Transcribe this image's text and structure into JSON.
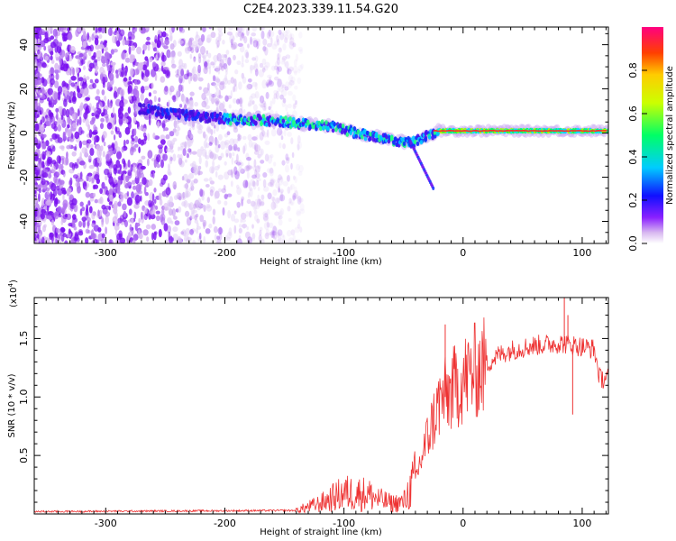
{
  "title": "C2E4.2023.339.11.54.G20",
  "chart_data": [
    {
      "type": "heatmap",
      "xlabel": "Height of straight line (km)",
      "ylabel": "Frequency (Hz)",
      "xlim": [
        -360,
        122
      ],
      "ylim": [
        -50,
        48
      ],
      "x_ticks": [
        -300,
        -200,
        -100,
        0,
        100
      ],
      "x_tick_labels": [
        "-300",
        "-200",
        "-100",
        "0",
        "100"
      ],
      "y_ticks": [
        -40,
        -20,
        0,
        20,
        40
      ],
      "y_tick_labels": [
        "-40",
        "-20",
        "0",
        "20",
        "40"
      ],
      "colorbar": {
        "label": "Normalized spectral amplitude",
        "range": [
          0,
          1
        ],
        "ticks": [
          0.0,
          0.2,
          0.4,
          0.6,
          0.8
        ],
        "tick_labels": [
          "0.0",
          "0.2",
          "0.4",
          "0.6",
          "0.8"
        ]
      },
      "signal_track": {
        "x": [
          -270,
          -250,
          -230,
          -210,
          -190,
          -170,
          -150,
          -130,
          -110,
          -90,
          -70,
          -50,
          -40,
          -30,
          -20,
          0,
          20,
          40,
          60,
          80,
          100,
          120
        ],
        "y": [
          11,
          9,
          8,
          7,
          6,
          6,
          5,
          4,
          3,
          0,
          -2,
          -4,
          -4,
          -1,
          1,
          1,
          1,
          1,
          1,
          1,
          1,
          1
        ]
      },
      "spur": {
        "x": [
          -45,
          -25
        ],
        "y": [
          -3,
          -25
        ]
      }
    },
    {
      "type": "line",
      "xlabel": "Height of straight line (km)",
      "ylabel": "SNR (10 * v/v)",
      "scale_label": "(x10",
      "scale_exp": "4",
      "scale_suffix": ")",
      "xlim": [
        -360,
        122
      ],
      "ylim": [
        0,
        18500
      ],
      "x_ticks": [
        -300,
        -200,
        -100,
        0,
        100
      ],
      "x_tick_labels": [
        "-300",
        "-200",
        "-100",
        "0",
        "100"
      ],
      "y_ticks": [
        5000,
        10000,
        15000
      ],
      "y_tick_labels": [
        "0.5",
        "1.0",
        "1.5"
      ],
      "color": "#ee3333",
      "envelope": {
        "x": [
          -360,
          -140,
          -120,
          -100,
          -80,
          -70,
          -60,
          -50,
          -40,
          -30,
          -20,
          -10,
          0,
          10,
          20,
          30,
          40,
          50,
          60,
          70,
          80,
          90,
          100,
          110,
          115,
          120
        ],
        "y": [
          200,
          300,
          900,
          1800,
          1700,
          1200,
          900,
          1000,
          3000,
          6500,
          9500,
          10500,
          11500,
          12200,
          12800,
          13600,
          14000,
          14200,
          14400,
          14500,
          14600,
          14500,
          14300,
          14100,
          11500,
          11700
        ]
      },
      "peaks": {
        "x": [
          -15,
          85,
          88,
          92
        ],
        "y": [
          16200,
          18500,
          17000,
          8500
        ]
      }
    }
  ]
}
